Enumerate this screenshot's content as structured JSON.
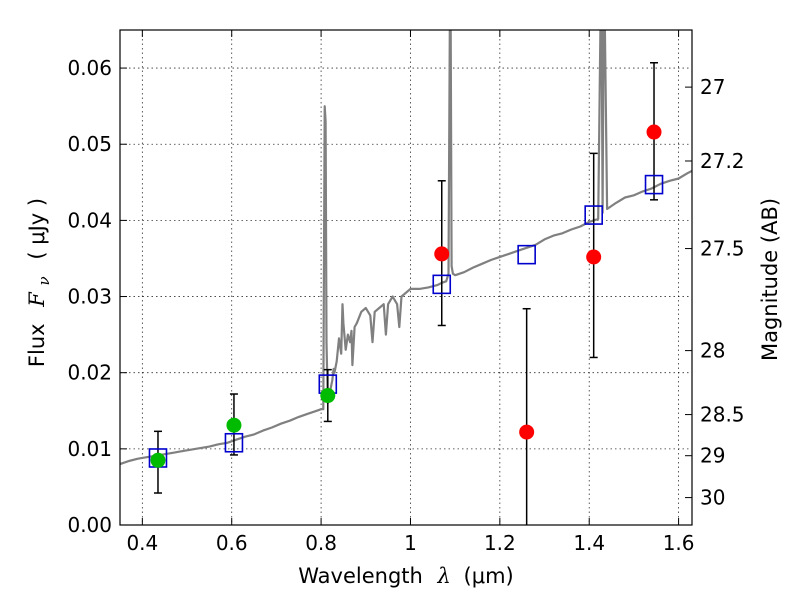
{
  "chart_data": {
    "type": "scatter",
    "xlabel": "Wavelength",
    "xlabel_symbol": "λ",
    "xlabel_unit": "(μm)",
    "ylabel": "Flux",
    "ylabel_symbol": "F",
    "ylabel_sub": "ν",
    "ylabel_unit": "( μJy )",
    "y2label": "Magnitude (AB)",
    "xlim": [
      0.35,
      1.63
    ],
    "ylim": [
      0.0,
      0.065
    ],
    "grid": true,
    "x_ticks": [
      0.4,
      0.6,
      0.8,
      1.0,
      1.2,
      1.4,
      1.6
    ],
    "x_tick_labels": [
      "0.4",
      "0.6",
      "0.8",
      "1",
      "1.2",
      "1.4",
      "1.6"
    ],
    "y_ticks": [
      0.0,
      0.01,
      0.02,
      0.03,
      0.04,
      0.05,
      0.06
    ],
    "y_tick_labels": [
      "0.00",
      "0.01",
      "0.02",
      "0.03",
      "0.04",
      "0.05",
      "0.06"
    ],
    "y2_ticks": [
      {
        "label": "27",
        "flux": 0.0575
      },
      {
        "label": "27.2",
        "flux": 0.0478
      },
      {
        "label": "27.5",
        "flux": 0.0363
      },
      {
        "label": "28",
        "flux": 0.0229
      },
      {
        "label": "28.5",
        "flux": 0.0145
      },
      {
        "label": "29",
        "flux": 0.0091
      },
      {
        "label": "30",
        "flux": 0.0036
      }
    ],
    "colors": {
      "spectrum": "#808080",
      "model_box": "#0000cc",
      "detection": "#00bb00",
      "nondetection": "#ff0000",
      "errorbar": "#000000"
    },
    "spectrum": {
      "name": "",
      "x": [
        0.35,
        0.37,
        0.39,
        0.41,
        0.43,
        0.45,
        0.47,
        0.49,
        0.51,
        0.53,
        0.55,
        0.57,
        0.59,
        0.61,
        0.63,
        0.65,
        0.67,
        0.69,
        0.71,
        0.73,
        0.75,
        0.77,
        0.79,
        0.8,
        0.805,
        0.808,
        0.81,
        0.812,
        0.815,
        0.82,
        0.825,
        0.828,
        0.83,
        0.835,
        0.84,
        0.845,
        0.848,
        0.85,
        0.855,
        0.86,
        0.865,
        0.868,
        0.87,
        0.875,
        0.88,
        0.89,
        0.9,
        0.91,
        0.915,
        0.92,
        0.93,
        0.94,
        0.945,
        0.95,
        0.96,
        0.97,
        0.975,
        0.98,
        0.99,
        1.0,
        1.02,
        1.04,
        1.06,
        1.07,
        1.08,
        1.085,
        1.088,
        1.09,
        1.092,
        1.095,
        1.1,
        1.12,
        1.14,
        1.16,
        1.18,
        1.2,
        1.22,
        1.24,
        1.26,
        1.28,
        1.3,
        1.32,
        1.34,
        1.36,
        1.38,
        1.4,
        1.42,
        1.425,
        1.428,
        1.43,
        1.432,
        1.435,
        1.44,
        1.46,
        1.48,
        1.5,
        1.52,
        1.54,
        1.56,
        1.58,
        1.6,
        1.62,
        1.63
      ],
      "y": [
        0.008,
        0.0084,
        0.0087,
        0.0089,
        0.0091,
        0.0093,
        0.0095,
        0.0097,
        0.0099,
        0.0101,
        0.0103,
        0.0106,
        0.0108,
        0.0112,
        0.0116,
        0.0119,
        0.0124,
        0.0128,
        0.0133,
        0.0137,
        0.0142,
        0.0146,
        0.015,
        0.0152,
        0.0152,
        0.055,
        0.053,
        0.024,
        0.016,
        0.0175,
        0.019,
        0.0205,
        0.02,
        0.0215,
        0.0245,
        0.0225,
        0.029,
        0.0265,
        0.023,
        0.025,
        0.024,
        0.0255,
        0.021,
        0.026,
        0.0265,
        0.028,
        0.0285,
        0.0275,
        0.024,
        0.028,
        0.0285,
        0.029,
        0.025,
        0.029,
        0.03,
        0.029,
        0.026,
        0.03,
        0.0305,
        0.031,
        0.031,
        0.0312,
        0.0315,
        0.0318,
        0.032,
        0.033,
        0.065,
        0.065,
        0.034,
        0.033,
        0.0328,
        0.0332,
        0.0338,
        0.0343,
        0.0348,
        0.0352,
        0.0356,
        0.036,
        0.0364,
        0.0368,
        0.0375,
        0.038,
        0.0383,
        0.0388,
        0.0392,
        0.0398,
        0.0402,
        0.065,
        0.065,
        0.041,
        0.065,
        0.065,
        0.0415,
        0.0423,
        0.043,
        0.0433,
        0.0438,
        0.0442,
        0.0448,
        0.0452,
        0.0455,
        0.0462,
        0.0465
      ]
    },
    "model_boxes": {
      "name": "",
      "x": [
        0.435,
        0.605,
        0.815,
        1.07,
        1.26,
        1.41,
        1.545
      ],
      "y": [
        0.0088,
        0.0108,
        0.0185,
        0.0316,
        0.0355,
        0.0407,
        0.0447
      ]
    },
    "detections": {
      "name": "",
      "x": [
        0.435,
        0.605,
        0.815
      ],
      "y": [
        0.0085,
        0.0131,
        0.017
      ],
      "err_low": [
        0.0043,
        0.0039,
        0.0034
      ],
      "err_high": [
        0.0038,
        0.0041,
        0.0034
      ]
    },
    "nondetections": {
      "name": "",
      "x": [
        1.07,
        1.26,
        1.41,
        1.545
      ],
      "y": [
        0.0356,
        0.0122,
        0.0352,
        0.0516
      ],
      "err_low": [
        0.0094,
        0.015,
        0.0132,
        0.0089
      ],
      "err_high": [
        0.0096,
        0.0162,
        0.0136,
        0.0091
      ]
    }
  }
}
